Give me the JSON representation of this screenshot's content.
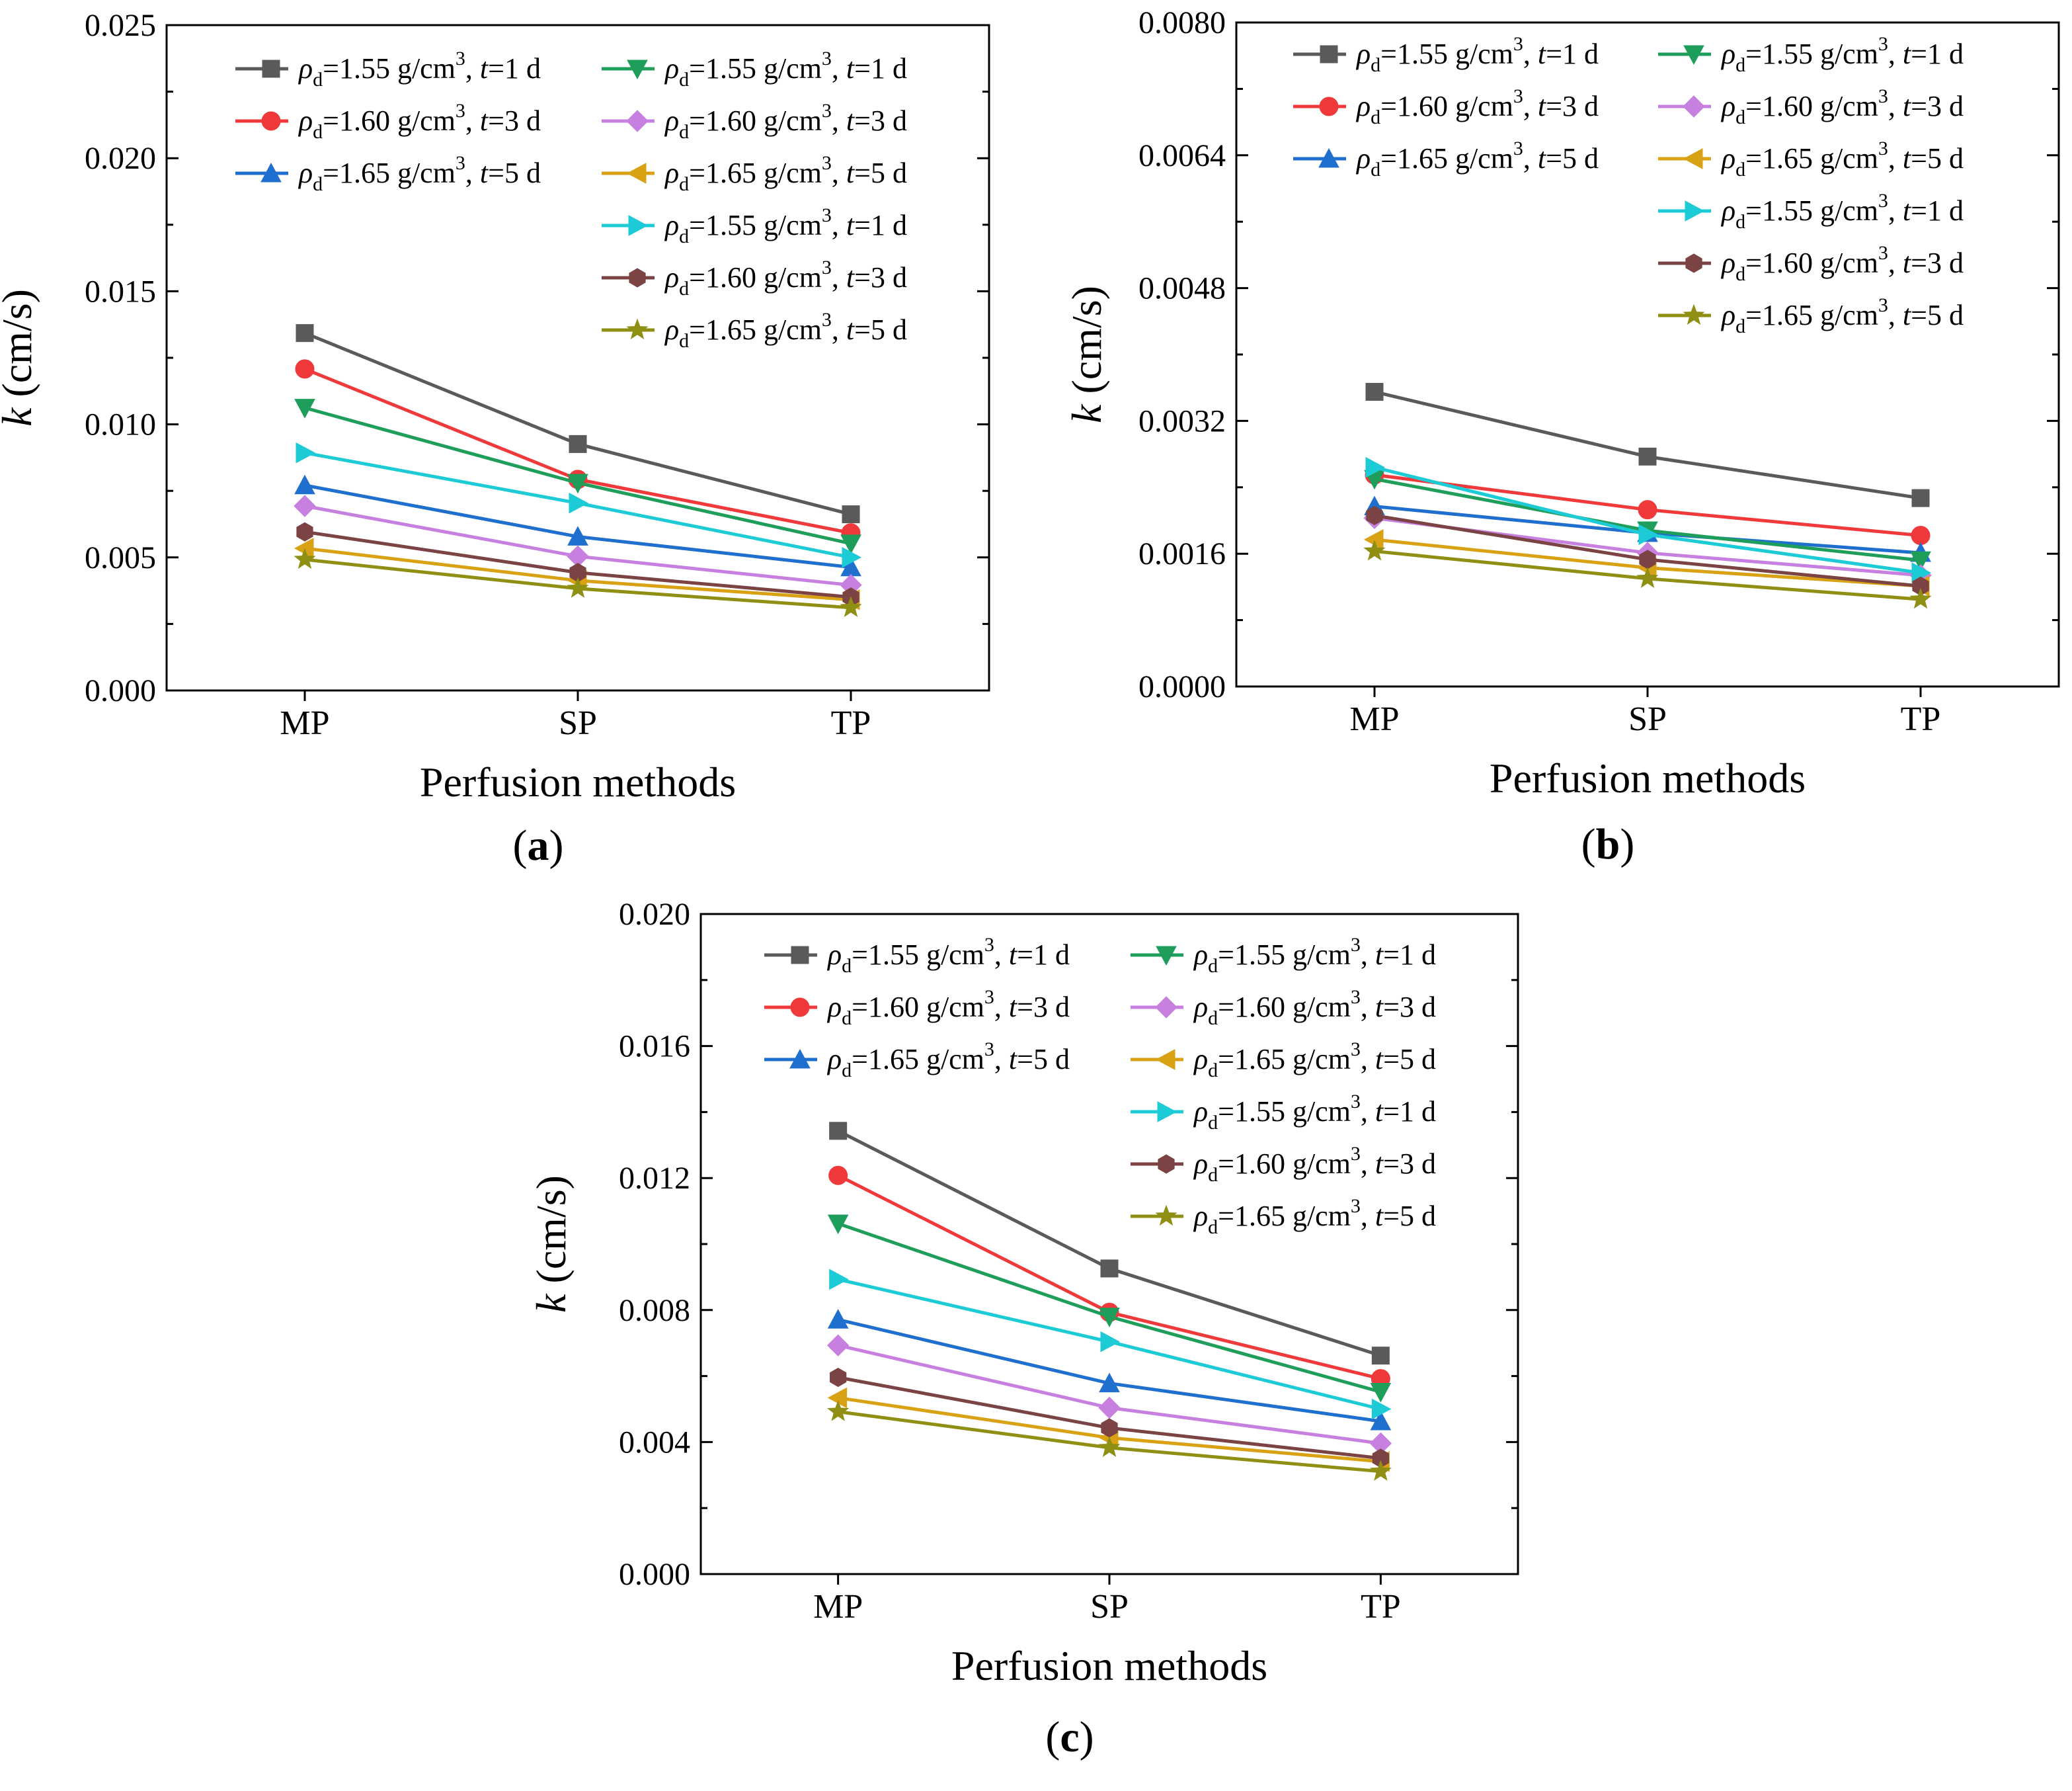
{
  "legend_entries": [
    {
      "density": "1.55",
      "unit": "g/cm",
      "days": "1",
      "marker": "square",
      "color": "#5a5a5a"
    },
    {
      "density": "1.60",
      "unit": "g/cm",
      "days": "3",
      "marker": "circle",
      "color": "#f0393b"
    },
    {
      "density": "1.65",
      "unit": "g/cm",
      "days": "5",
      "marker": "triangle-up",
      "color": "#1f6fcf"
    },
    {
      "density": "1.55",
      "unit": "g/cm",
      "days": "1",
      "marker": "triangle-down",
      "color": "#1e9e5a"
    },
    {
      "density": "1.60",
      "unit": "g/cm",
      "days": "3",
      "marker": "diamond",
      "color": "#c77fe0"
    },
    {
      "density": "1.65",
      "unit": "g/cm",
      "days": "5",
      "marker": "triangle-left",
      "color": "#d9a114"
    },
    {
      "density": "1.55",
      "unit": "g/cm",
      "days": "1",
      "marker": "triangle-right",
      "color": "#1ccbd6"
    },
    {
      "density": "1.60",
      "unit": "g/cm",
      "days": "3",
      "marker": "hexagon",
      "color": "#7b4343"
    },
    {
      "density": "1.65",
      "unit": "g/cm",
      "days": "5",
      "marker": "star",
      "color": "#8f8f14"
    }
  ],
  "legend_text": {
    "rho": "ρ",
    "sub": "d",
    "sup": "3",
    "eq": "=",
    "t": "t",
    "d_unit": " d"
  },
  "chart_data": [
    {
      "type": "line",
      "panel_label": "(a)",
      "panel_letter": "a",
      "categories": [
        "MP",
        "SP",
        "TP"
      ],
      "xlabel": "Perfusion methods",
      "ylabel_var": "k",
      "ylabel_unit": "(cm/s)",
      "ylim": [
        0,
        0.025
      ],
      "yticks": [
        0,
        0.005,
        0.01,
        0.015,
        0.02,
        0.025
      ],
      "ytick_labels": [
        "0.000",
        "0.005",
        "0.010",
        "0.015",
        "0.020",
        "0.025"
      ],
      "series": [
        {
          "values": [
            0.01343,
            0.00926,
            0.00662
          ]
        },
        {
          "values": [
            0.01208,
            0.00793,
            0.00592
          ]
        },
        {
          "values": [
            0.00771,
            0.00578,
            0.00463
          ]
        },
        {
          "values": [
            0.01062,
            0.0078,
            0.00552
          ]
        },
        {
          "values": [
            0.00693,
            0.00504,
            0.00396
          ]
        },
        {
          "values": [
            0.00534,
            0.00413,
            0.00341
          ]
        },
        {
          "values": [
            0.00893,
            0.00704,
            0.005
          ]
        },
        {
          "values": [
            0.00596,
            0.00443,
            0.00351
          ]
        },
        {
          "values": [
            0.00492,
            0.00383,
            0.00311
          ]
        }
      ]
    },
    {
      "type": "line",
      "panel_label": "(b)",
      "panel_letter": "b",
      "categories": [
        "MP",
        "SP",
        "TP"
      ],
      "xlabel": "Perfusion methods",
      "ylabel_var": "k",
      "ylabel_unit": "(cm/s)",
      "ylim": [
        0,
        0.008
      ],
      "yticks": [
        0,
        0.0016,
        0.0032,
        0.0048,
        0.0064,
        0.008
      ],
      "ytick_labels": [
        "0.0000",
        "0.0016",
        "0.0032",
        "0.0048",
        "0.0064",
        "0.0080"
      ],
      "series": [
        {
          "values": [
            0.00355,
            0.00277,
            0.00227
          ]
        },
        {
          "values": [
            0.00255,
            0.00213,
            0.00182
          ]
        },
        {
          "values": [
            0.00217,
            0.00185,
            0.00161
          ]
        },
        {
          "values": [
            0.0025,
            0.00188,
            0.00152
          ]
        },
        {
          "values": [
            0.00203,
            0.00161,
            0.00134
          ]
        },
        {
          "values": [
            0.00177,
            0.00143,
            0.00121
          ]
        },
        {
          "values": [
            0.00264,
            0.00183,
            0.00137
          ]
        },
        {
          "values": [
            0.00206,
            0.00153,
            0.00121
          ]
        },
        {
          "values": [
            0.00163,
            0.0013,
            0.00105
          ]
        }
      ]
    },
    {
      "type": "line",
      "panel_label": "(c)",
      "panel_letter": "c",
      "categories": [
        "MP",
        "SP",
        "TP"
      ],
      "xlabel": "Perfusion methods",
      "ylabel_var": "k",
      "ylabel_unit": "(cm/s)",
      "ylim": [
        0,
        0.02
      ],
      "yticks": [
        0,
        0.004,
        0.008,
        0.012,
        0.016,
        0.02
      ],
      "ytick_labels": [
        "0.000",
        "0.004",
        "0.008",
        "0.012",
        "0.016",
        "0.020"
      ],
      "series": [
        {
          "values": [
            0.01343,
            0.00926,
            0.00662
          ]
        },
        {
          "values": [
            0.01208,
            0.00793,
            0.00592
          ]
        },
        {
          "values": [
            0.00771,
            0.00578,
            0.00463
          ]
        },
        {
          "values": [
            0.01062,
            0.0078,
            0.00552
          ]
        },
        {
          "values": [
            0.00693,
            0.00504,
            0.00396
          ]
        },
        {
          "values": [
            0.00534,
            0.00413,
            0.00341
          ]
        },
        {
          "values": [
            0.00893,
            0.00704,
            0.005
          ]
        },
        {
          "values": [
            0.00596,
            0.00443,
            0.00351
          ]
        },
        {
          "values": [
            0.00492,
            0.00383,
            0.00311
          ]
        }
      ]
    }
  ]
}
